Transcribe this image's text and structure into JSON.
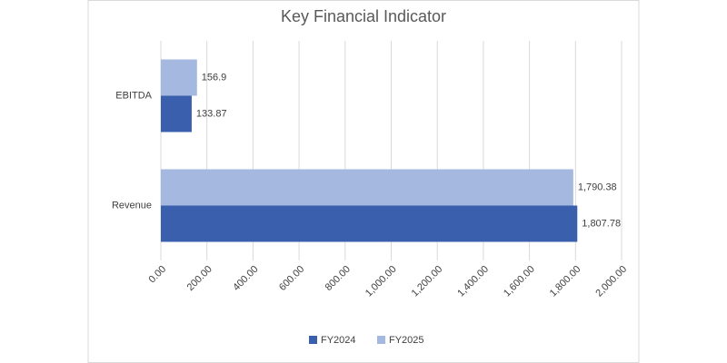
{
  "chart_data": {
    "type": "bar",
    "orientation": "horizontal",
    "title": "Key Financial Indicator",
    "categories": [
      "EBITDA",
      "Revenue"
    ],
    "series": [
      {
        "name": "FY2024",
        "color": "#3a5fad",
        "values": [
          133.87,
          1807.78
        ],
        "value_labels": [
          "133.87",
          "1,807.78"
        ]
      },
      {
        "name": "FY2025",
        "color": "#a5b9e0",
        "values": [
          156.9,
          1790.38
        ],
        "value_labels": [
          "156.9",
          "1,790.38"
        ]
      }
    ],
    "xlim": [
      0,
      2000
    ],
    "xticks": [
      {
        "value": 0,
        "label": "0.00"
      },
      {
        "value": 200,
        "label": "200.00"
      },
      {
        "value": 400,
        "label": "400.00"
      },
      {
        "value": 600,
        "label": "600.00"
      },
      {
        "value": 800,
        "label": "800.00"
      },
      {
        "value": 1000,
        "label": "1,000.00"
      },
      {
        "value": 1200,
        "label": "1,200.00"
      },
      {
        "value": 1400,
        "label": "1,400.00"
      },
      {
        "value": 1600,
        "label": "1,600.00"
      },
      {
        "value": 1800,
        "label": "1,800.00"
      },
      {
        "value": 2000,
        "label": "2,000.00"
      }
    ],
    "grid": true,
    "legend": "bottom"
  }
}
